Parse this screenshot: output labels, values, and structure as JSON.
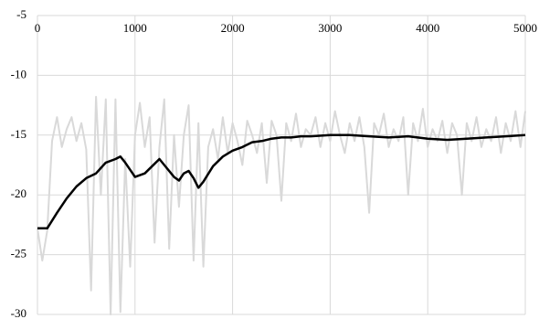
{
  "chart_data": {
    "type": "line",
    "xlim": [
      0,
      5000
    ],
    "xticks": [
      0,
      1000,
      2000,
      3000,
      4000,
      5000
    ],
    "ylim": [
      -30,
      -5
    ],
    "yticks": [
      -5,
      -10,
      -15,
      -20,
      -25,
      -30
    ],
    "grid": true,
    "x_axis_position": "top",
    "series": [
      {
        "color": "#d9d9d9",
        "x": [
          0,
          50,
          100,
          150,
          200,
          250,
          300,
          350,
          400,
          450,
          500,
          550,
          600,
          650,
          700,
          750,
          800,
          850,
          900,
          950,
          1000,
          1050,
          1100,
          1150,
          1200,
          1250,
          1300,
          1350,
          1400,
          1450,
          1500,
          1550,
          1600,
          1650,
          1700,
          1750,
          1800,
          1850,
          1900,
          1950,
          2000,
          2050,
          2100,
          2150,
          2200,
          2250,
          2300,
          2350,
          2400,
          2450,
          2500,
          2550,
          2600,
          2650,
          2700,
          2750,
          2800,
          2850,
          2900,
          2950,
          3000,
          3050,
          3100,
          3150,
          3200,
          3250,
          3300,
          3350,
          3400,
          3450,
          3500,
          3550,
          3600,
          3650,
          3700,
          3750,
          3800,
          3850,
          3900,
          3950,
          4000,
          4050,
          4100,
          4150,
          4200,
          4250,
          4300,
          4350,
          4400,
          4450,
          4500,
          4550,
          4600,
          4650,
          4700,
          4750,
          4800,
          4850,
          4900,
          4950,
          5000
        ],
        "values": [
          -22.8,
          -25.5,
          -23,
          -15.5,
          -13.5,
          -16,
          -14.5,
          -13.5,
          -15.5,
          -14,
          -16.2,
          -28,
          -11.8,
          -20,
          -12,
          -30,
          -12,
          -29.8,
          -17,
          -26,
          -15,
          -12.3,
          -16,
          -13.5,
          -24,
          -16,
          -12,
          -24.5,
          -15,
          -21,
          -15,
          -12.5,
          -25.5,
          -14,
          -26,
          -16,
          -14.5,
          -17,
          -13.5,
          -16.5,
          -14,
          -15.5,
          -17.5,
          -13.8,
          -15,
          -16.5,
          -14,
          -19,
          -13.8,
          -15,
          -20.5,
          -14,
          -15.5,
          -13.2,
          -16,
          -14.5,
          -15,
          -13.5,
          -16,
          -14,
          -15.5,
          -13,
          -15,
          -16.5,
          -14,
          -15.5,
          -13.5,
          -16,
          -21.5,
          -14,
          -15,
          -13.2,
          -16,
          -14.5,
          -15.5,
          -13.5,
          -20,
          -14,
          -15.5,
          -12.8,
          -16,
          -14.5,
          -15.5,
          -13.8,
          -16.5,
          -14,
          -15,
          -20,
          -14,
          -15.5,
          -13.5,
          -16,
          -14.5,
          -15.5,
          -13.5,
          -16.5,
          -14,
          -15.5,
          -13,
          -16,
          -13
        ]
      },
      {
        "color": "#000000",
        "x": [
          0,
          100,
          200,
          300,
          400,
          500,
          600,
          700,
          800,
          850,
          900,
          1000,
          1100,
          1200,
          1250,
          1300,
          1400,
          1450,
          1500,
          1550,
          1600,
          1650,
          1700,
          1800,
          1900,
          2000,
          2100,
          2200,
          2300,
          2400,
          2500,
          2600,
          2700,
          2800,
          3000,
          3200,
          3400,
          3600,
          3800,
          4000,
          4200,
          4400,
          4600,
          4800,
          5000
        ],
        "values": [
          -22.8,
          -22.8,
          -21.5,
          -20.3,
          -19.3,
          -18.6,
          -18.2,
          -17.3,
          -17,
          -16.8,
          -17.3,
          -18.5,
          -18.2,
          -17.4,
          -17,
          -17.5,
          -18.5,
          -18.8,
          -18.2,
          -18,
          -18.6,
          -19.4,
          -18.9,
          -17.6,
          -16.8,
          -16.3,
          -16,
          -15.6,
          -15.5,
          -15.3,
          -15.2,
          -15.2,
          -15.1,
          -15.1,
          -15,
          -15,
          -15.1,
          -15.2,
          -15.1,
          -15.3,
          -15.4,
          -15.3,
          -15.2,
          -15.1,
          -15
        ]
      }
    ]
  }
}
